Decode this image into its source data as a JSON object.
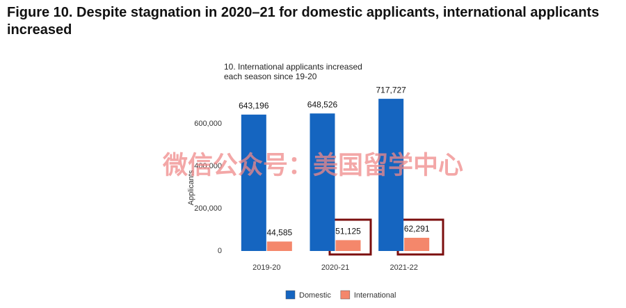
{
  "title": "Figure 10. Despite stagnation in 2020–21 for domestic applicants, international applicants increased",
  "watermark": "微信公众号：美国留学中心",
  "chart_data": {
    "type": "bar",
    "title": "10. International applicants increased each season since 19-20",
    "ylabel": "Applicants",
    "categories": [
      "2019-20",
      "2020-21",
      "2021-22"
    ],
    "series": [
      {
        "name": "Domestic",
        "color": "#1565c0",
        "values": [
          643196,
          648526,
          717727
        ],
        "value_labels": [
          "643,196",
          "648,526",
          "717,727"
        ]
      },
      {
        "name": "International",
        "color": "#f4876b",
        "values": [
          44585,
          51125,
          62291
        ],
        "value_labels": [
          "44,585",
          "51,125",
          "62,291"
        ]
      }
    ],
    "ylim": [
      0,
      750000
    ],
    "yticks": [
      0,
      {
        "value": 200000,
        "label": "200,000"
      },
      {
        "value": 400000,
        "label": "400,000"
      },
      {
        "value": 600000,
        "label": "600,000"
      }
    ],
    "grid": false,
    "legend": "bottom"
  }
}
